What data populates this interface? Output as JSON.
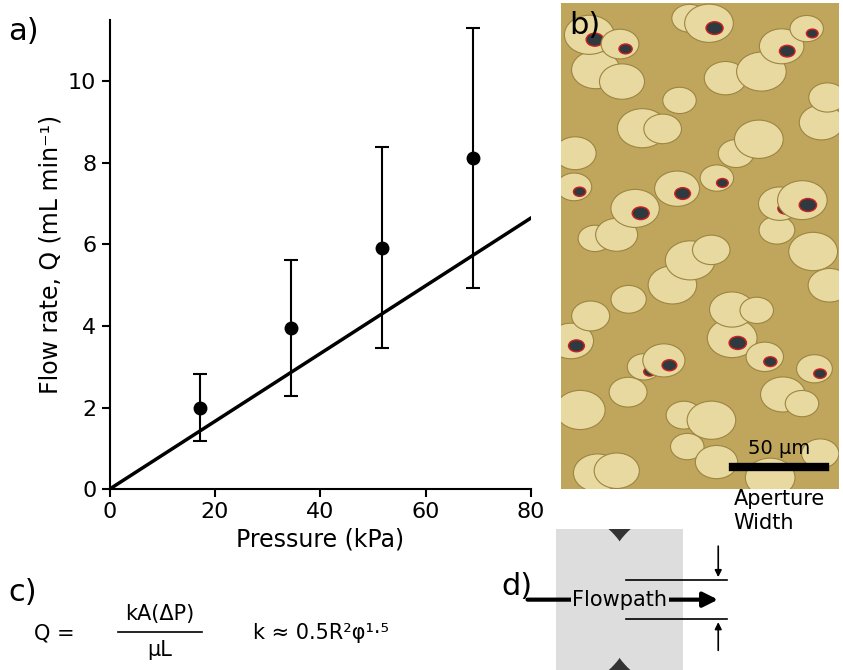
{
  "chart_data": {
    "type": "scatter",
    "panel_label": "a)",
    "x_label": "Pressure (kPa)",
    "y_label": "Flow rate, Q (mL min⁻¹)",
    "xlim": [
      0,
      80
    ],
    "xticks": [
      0,
      20,
      40,
      60,
      80
    ],
    "ylim": [
      0,
      11.5
    ],
    "yticks": [
      0,
      2,
      4,
      6,
      8,
      10
    ],
    "grid": false,
    "series": [
      {
        "type": "scatter",
        "x": [
          17.2,
          34.5,
          51.7,
          69.0
        ],
        "values": [
          2.0,
          3.95,
          5.92,
          8.12
        ],
        "errors": [
          0.83,
          1.67,
          2.46,
          3.19
        ],
        "color": "#000000",
        "marker": "circle"
      },
      {
        "type": "line",
        "x": [
          0,
          80
        ],
        "values": [
          0,
          6.65
        ],
        "color": "#000000",
        "line_style": "solid"
      }
    ]
  },
  "image": {
    "label": "b)",
    "scale_bar": "50 µm"
  },
  "equations": {
    "label": "c)",
    "flow": {
      "lhs": "Q =",
      "numerator": "kA(ΔP)",
      "denominator": "μL"
    },
    "permeability": "k ≈ 0.5R²φ¹·⁵"
  },
  "diagram": {
    "label": "d)",
    "flowpath": "Flowpath",
    "aperture": "Aperture\nWidth"
  }
}
